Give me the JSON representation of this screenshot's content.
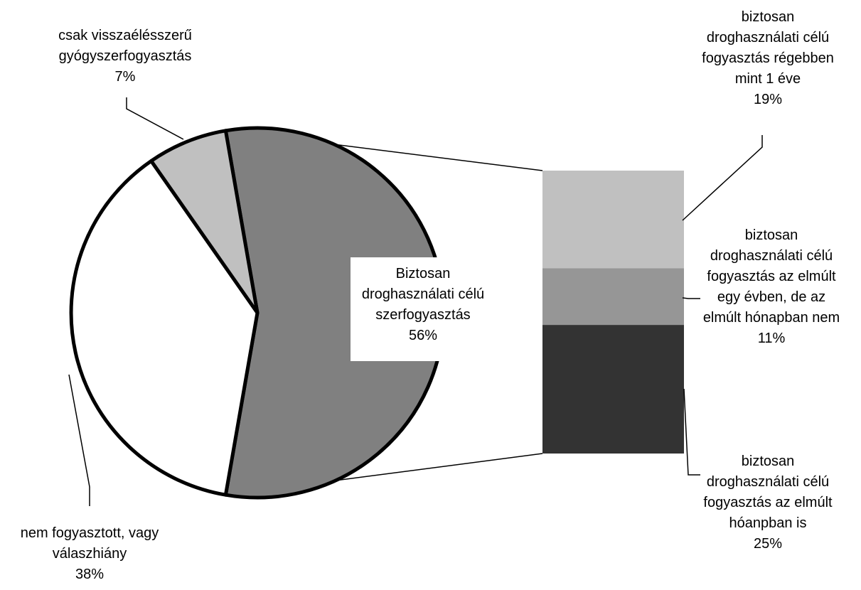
{
  "chart_data": {
    "type": "bar-of-pie",
    "pie": {
      "slices": [
        {
          "label_lines": [
            "Biztosan",
            "droghasználati célú",
            "szerfogyasztás"
          ],
          "value": 56,
          "value_text": "56%",
          "color": "#808080"
        },
        {
          "label_lines": [
            "nem fogyasztott, vagy",
            "válaszhiány"
          ],
          "value": 38,
          "value_text": "38%",
          "color": "#ffffff"
        },
        {
          "label_lines": [
            "csak visszaélésszerű",
            "gyógyszerfogyasztás"
          ],
          "value": 7,
          "value_text": "7%",
          "color": "#c0c0c0"
        }
      ]
    },
    "bar": {
      "segments": [
        {
          "label_lines": [
            "biztosan",
            "droghasználati célú",
            "fogyasztás régebben",
            "mint 1 éve"
          ],
          "value": 19,
          "value_text": "19%",
          "color": "#c0c0c0"
        },
        {
          "label_lines": [
            "biztosan",
            "droghasználati célú",
            "fogyasztás az elmúlt",
            "egy évben, de az",
            "elmúlt hónapban nem"
          ],
          "value": 11,
          "value_text": "11%",
          "color": "#969696"
        },
        {
          "label_lines": [
            "biztosan",
            "droghasználati célú",
            "fogyasztás az elmúlt",
            "hóanpban is"
          ],
          "value": 25,
          "value_text": "25%",
          "color": "#333333"
        }
      ]
    }
  }
}
